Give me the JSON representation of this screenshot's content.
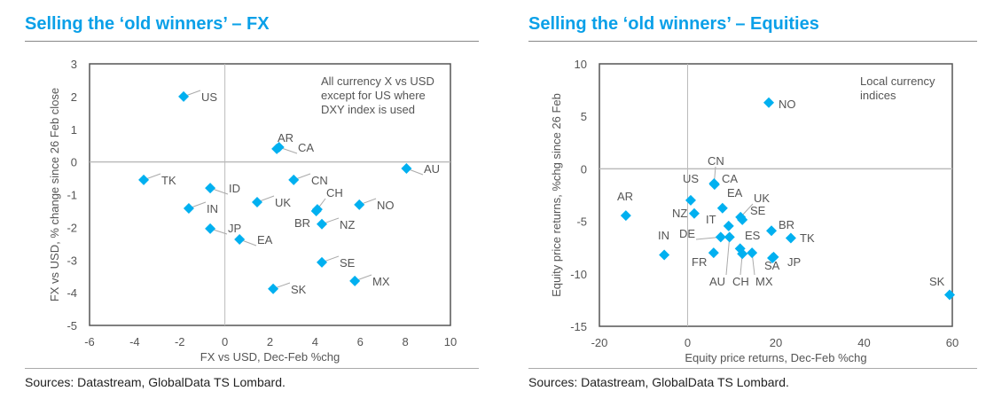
{
  "colors": {
    "title": "#0aa0e8",
    "marker": "#00b0f0"
  },
  "chart_data": [
    {
      "type": "scatter",
      "title": "Selling the ‘old winners’ – FX",
      "xlabel": "FX vs USD, Dec-Feb %chg",
      "ylabel": "FX vs USD, % change since 26 Feb close",
      "xlim": [
        -6,
        10
      ],
      "ylim": [
        -5,
        3
      ],
      "xticks": [
        -6,
        -4,
        -2,
        0,
        2,
        4,
        6,
        8,
        10
      ],
      "yticks": [
        -5,
        -4,
        -3,
        -2,
        -1,
        0,
        1,
        2,
        3
      ],
      "annotation": [
        "All currency X vs USD",
        "except for US where",
        "DXY index is used"
      ],
      "source": "Sources: Datastream, GlobalData TS Lombard.",
      "points": [
        {
          "label": "US",
          "x": -1.83,
          "y": 2.0
        },
        {
          "label": "AR",
          "x": 2.3,
          "y": 0.4
        },
        {
          "label": "CA",
          "x": 2.4,
          "y": 0.45
        },
        {
          "label": "AU",
          "x": 8.05,
          "y": -0.2
        },
        {
          "label": "TK",
          "x": -3.6,
          "y": -0.55
        },
        {
          "label": "ID",
          "x": -0.65,
          "y": -0.8
        },
        {
          "label": "CN",
          "x": 3.05,
          "y": -0.55
        },
        {
          "label": "UK",
          "x": 1.43,
          "y": -1.23
        },
        {
          "label": "IN",
          "x": -1.6,
          "y": -1.42
        },
        {
          "label": "CH",
          "x": 4.1,
          "y": -1.45
        },
        {
          "label": "BR",
          "x": 4.05,
          "y": -1.5
        },
        {
          "label": "NO",
          "x": 5.96,
          "y": -1.31
        },
        {
          "label": "NZ",
          "x": 4.3,
          "y": -1.9
        },
        {
          "label": "JP",
          "x": -0.65,
          "y": -2.04
        },
        {
          "label": "EA",
          "x": 0.65,
          "y": -2.37
        },
        {
          "label": "SE",
          "x": 4.3,
          "y": -3.07
        },
        {
          "label": "MX",
          "x": 5.76,
          "y": -3.64
        },
        {
          "label": "SK",
          "x": 2.14,
          "y": -3.88
        }
      ]
    },
    {
      "type": "scatter",
      "title": "Selling the ‘old winners’ – Equities",
      "xlabel": "Equity price returns, Dec-Feb %chg",
      "ylabel": "Equity price returns, %chg since 26 Feb",
      "xlim": [
        -20,
        60
      ],
      "ylim": [
        -15,
        10
      ],
      "xticks": [
        -20,
        0,
        20,
        40,
        60
      ],
      "yticks": [
        -15,
        -10,
        -5,
        0,
        5,
        10
      ],
      "annotation": [
        "Local currency",
        "indices"
      ],
      "source": "Sources: Datastream, GlobalData TS Lombard.",
      "points": [
        {
          "label": "NO",
          "x": 18.4,
          "y": 6.3
        },
        {
          "label": "SK",
          "x": 59.4,
          "y": -12.0
        },
        {
          "label": "AR",
          "x": -14.0,
          "y": -4.45
        },
        {
          "label": "IN",
          "x": -5.3,
          "y": -8.2
        },
        {
          "label": "US",
          "x": 0.7,
          "y": -3.0
        },
        {
          "label": "NZ",
          "x": 1.5,
          "y": -4.25
        },
        {
          "label": "CN",
          "x": 6.0,
          "y": -1.4
        },
        {
          "label": "CA",
          "x": 6.1,
          "y": -1.5
        },
        {
          "label": "EA",
          "x": 7.9,
          "y": -3.75
        },
        {
          "label": "IT",
          "x": 9.3,
          "y": -5.45
        },
        {
          "label": "UK",
          "x": 12.0,
          "y": -4.6
        },
        {
          "label": "SE",
          "x": 12.4,
          "y": -4.85
        },
        {
          "label": "BR",
          "x": 19.0,
          "y": -5.9
        },
        {
          "label": "TK",
          "x": 23.4,
          "y": -6.6
        },
        {
          "label": "DE",
          "x": 7.5,
          "y": -6.5
        },
        {
          "label": "AU",
          "x": 9.5,
          "y": -6.5
        },
        {
          "label": "FR",
          "x": 5.9,
          "y": -8.0
        },
        {
          "label": "ES",
          "x": 11.9,
          "y": -7.6
        },
        {
          "label": "CH",
          "x": 12.4,
          "y": -8.1
        },
        {
          "label": "MX",
          "x": 14.6,
          "y": -8.0
        },
        {
          "label": "SA",
          "x": 19.2,
          "y": -8.5
        },
        {
          "label": "JP",
          "x": 19.5,
          "y": -8.4
        }
      ]
    }
  ]
}
